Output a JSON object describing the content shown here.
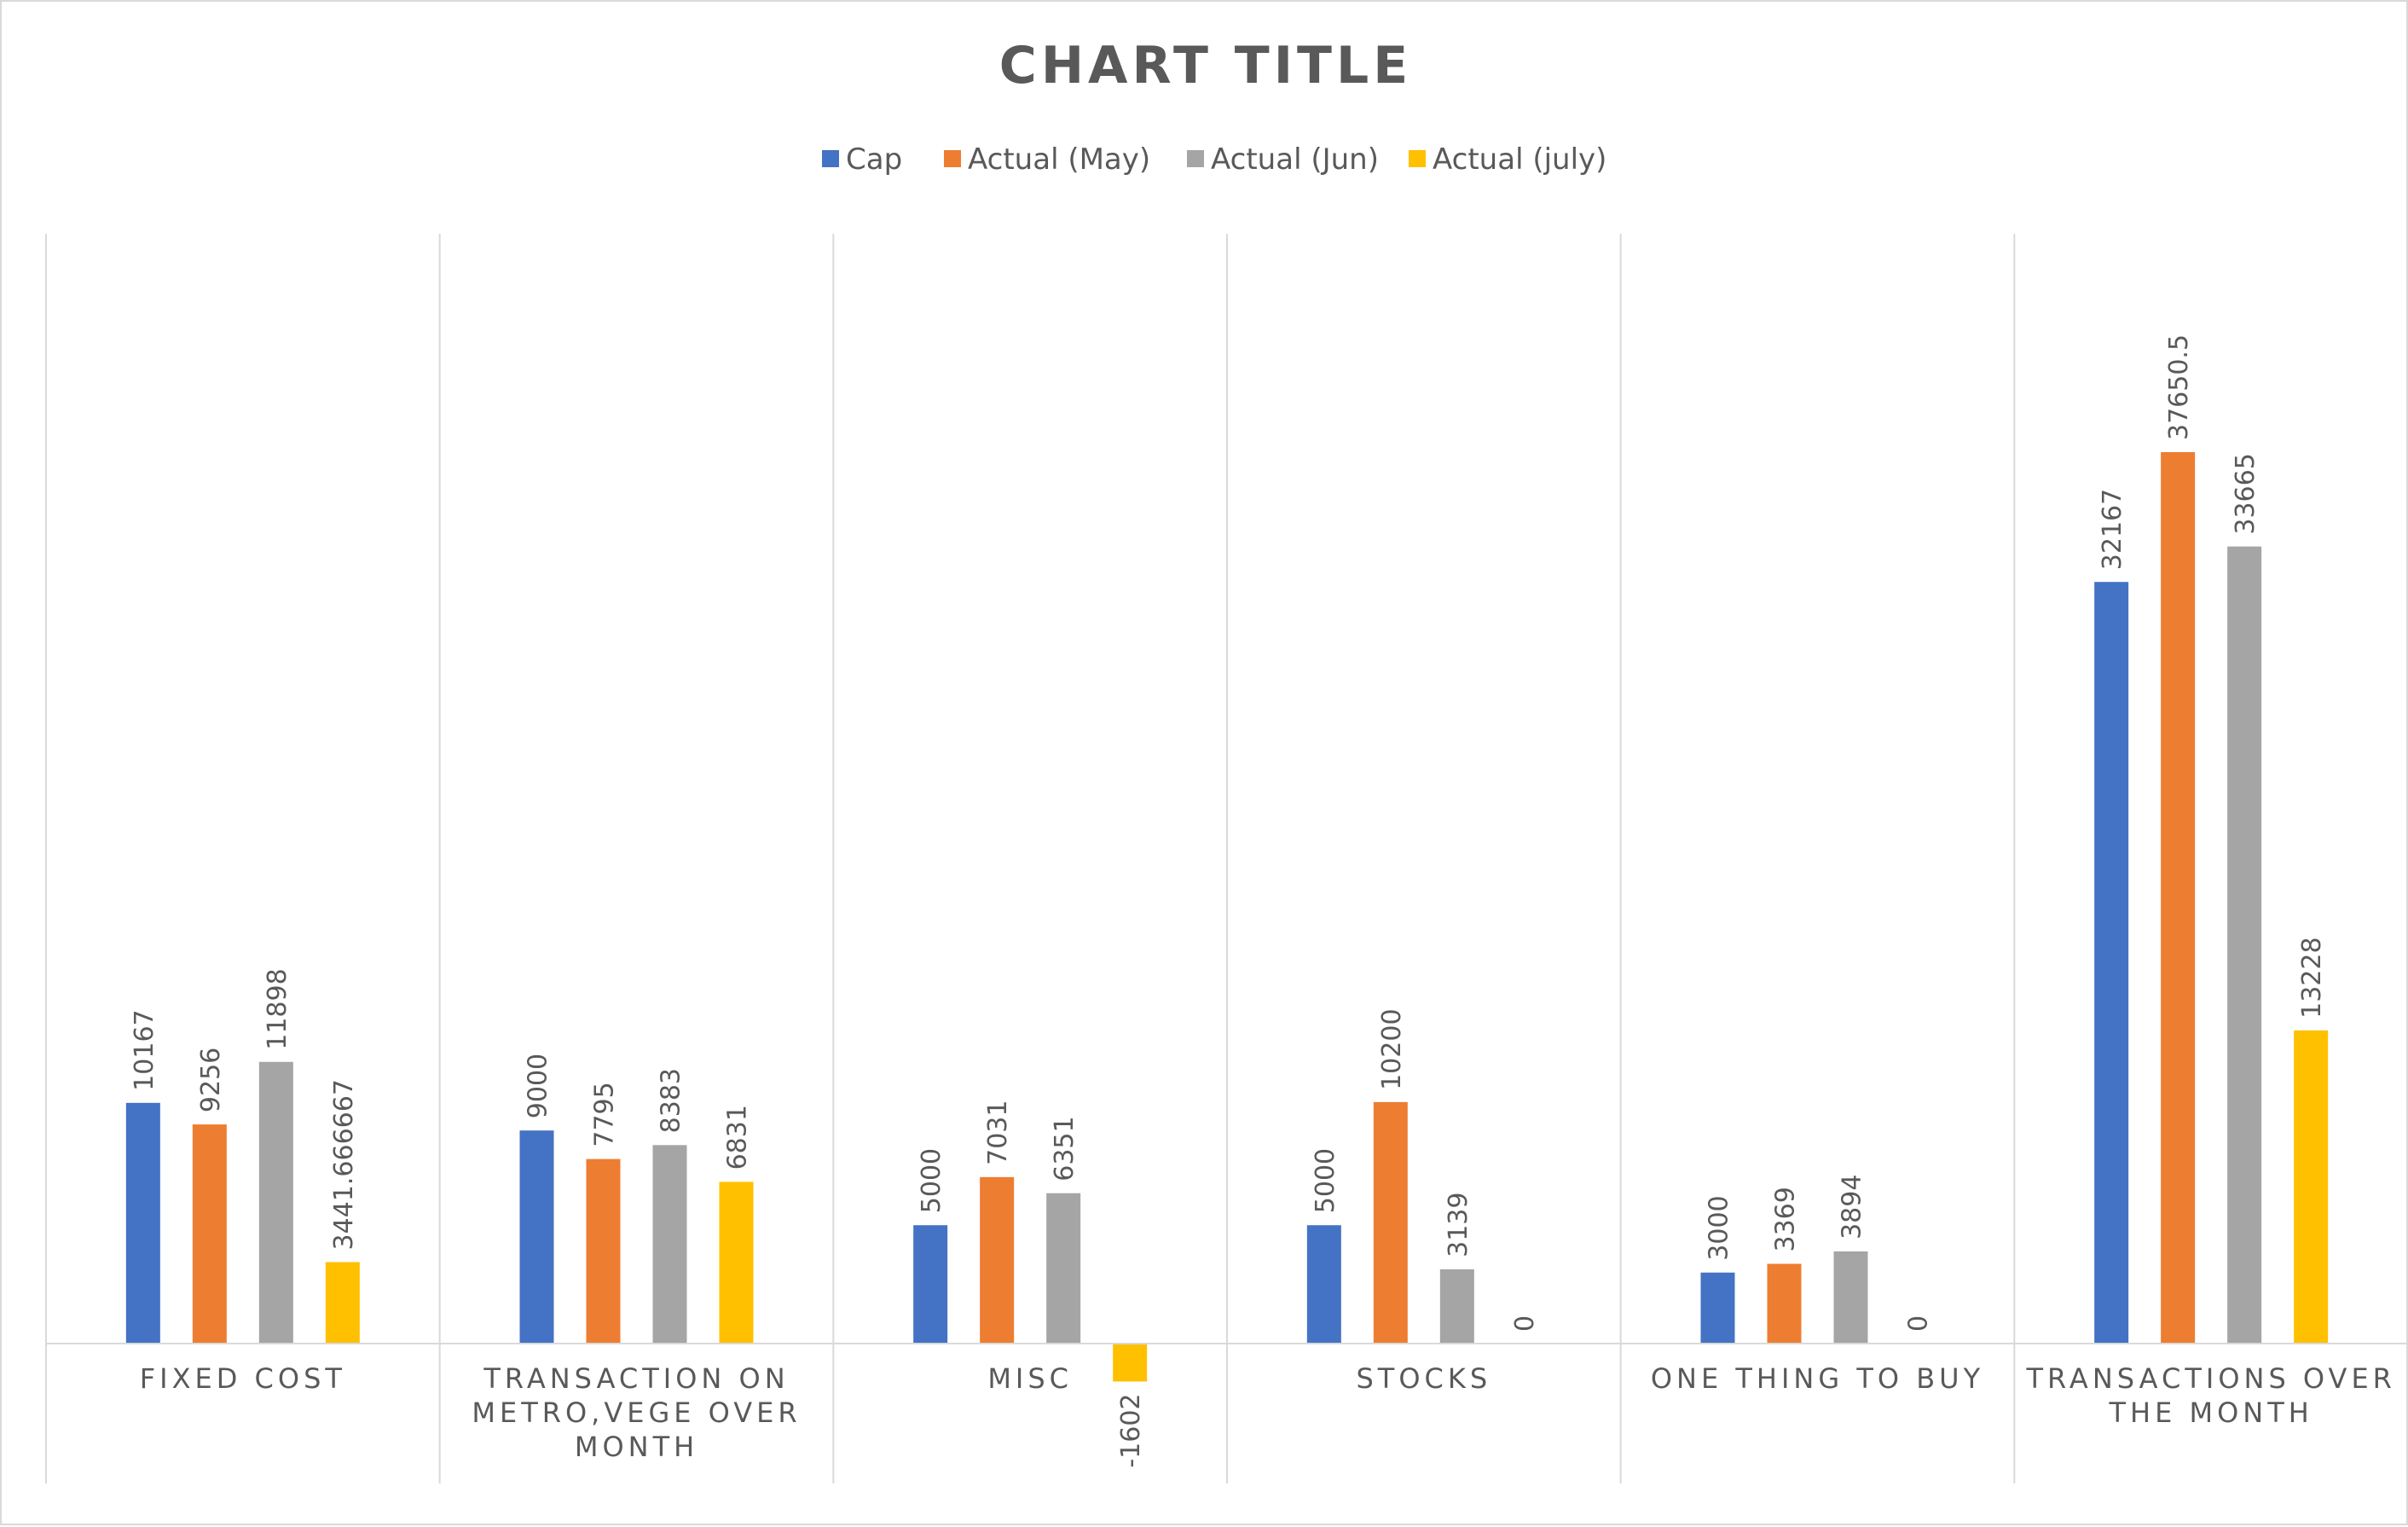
{
  "chart_data": {
    "type": "bar",
    "title": "CHART TITLE",
    "categories": [
      [
        "FIXED COST"
      ],
      [
        "TRANSACTION ON",
        "METRO,VEGE OVER",
        "MONTH"
      ],
      [
        "MISC"
      ],
      [
        "STOCKS"
      ],
      [
        "ONE THING TO BUY"
      ],
      [
        "TRANSACTIONS  OVER",
        "THE MONTH"
      ]
    ],
    "series": [
      {
        "name": "Cap",
        "color": "#4472C4",
        "values": [
          10167,
          9000,
          5000,
          5000,
          3000,
          32167
        ],
        "labels": [
          "10167",
          "9000",
          "5000",
          "5000",
          "3000",
          "32167"
        ]
      },
      {
        "name": "Actual (May)",
        "color": "#ED7D31",
        "values": [
          9256,
          7795,
          7031,
          10200,
          3369,
          37650.5
        ],
        "labels": [
          "9256",
          "7795",
          "7031",
          "10200",
          "3369",
          "37650.5"
        ]
      },
      {
        "name": "Actual (Jun)",
        "color": "#A5A5A5",
        "values": [
          11898,
          8383,
          6351,
          3139,
          3894,
          33665
        ],
        "labels": [
          "11898",
          "8383",
          "6351",
          "3139",
          "3894",
          "33665"
        ]
      },
      {
        "name": "Actual (july)",
        "color": "#FFC000",
        "values": [
          3441.666667,
          6831,
          -1602,
          0,
          0,
          13228
        ],
        "labels": [
          "3441.666667",
          "6831",
          "-1602",
          "0",
          "0",
          "13228"
        ]
      }
    ],
    "legend_position": "top",
    "gridlines": "vertical category separators"
  }
}
